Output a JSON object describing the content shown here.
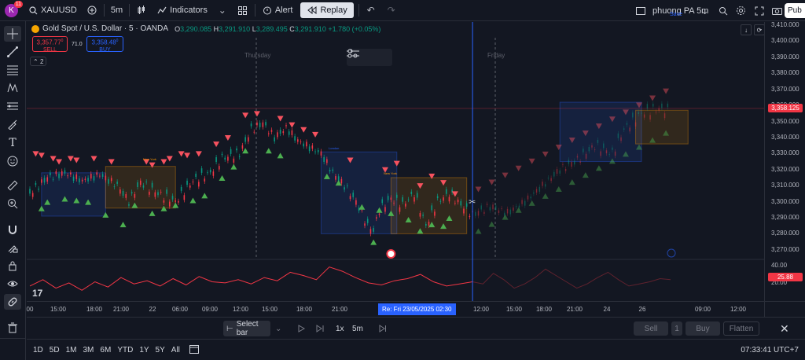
{
  "header": {
    "avatar_letter": "K",
    "notif_count": "11",
    "symbol": "XAUUSD",
    "interval": "5m",
    "indicators_label": "Indicators",
    "alert_label": "Alert",
    "replay_label": "Replay",
    "layout_name": "phuong PA 5m",
    "save_label": "Save",
    "publish_label": "Pub"
  },
  "legend": {
    "name": "Gold Spot / U.S. Dollar · 5 · OANDA",
    "o_label": "O",
    "o": "3,290.085",
    "h_label": "H",
    "h": "3,291.910",
    "l_label": "L",
    "l": "3,289.495",
    "c_label": "C",
    "c": "3,291.910",
    "chg": "+1.780 (+0.05%)",
    "sell_price": "3,357.77",
    "sell_sup": "0",
    "sell_label": "SELL",
    "spread": "71.0",
    "buy_price": "3,358.48",
    "buy_sup": "0",
    "buy_label": "BUY",
    "collapse_count": "2"
  },
  "chart_labels": {
    "day1": "Thursday",
    "day2": "Friday",
    "session_london": "London",
    "session_newyork": "New York"
  },
  "price_axis": {
    "ticks": [
      "3,410.000",
      "3,400.000",
      "3,390.000",
      "3,380.000",
      "3,370.000",
      "3,360.000",
      "3,350.000",
      "3,340.000",
      "3,330.000",
      "3,320.000",
      "3,310.000",
      "3,300.000",
      "3,290.000",
      "3,280.000",
      "3,270.000"
    ],
    "current_price": "3,358.125",
    "osc_ticks": [
      "40.00",
      "20.00"
    ],
    "osc_value": "25.88"
  },
  "time_axis": {
    "ticks": [
      "00",
      "15:00",
      "18:00",
      "21:00",
      "22",
      "06:00",
      "09:00",
      "12:00",
      "15:00",
      "18:00",
      "21:00",
      "09:00",
      "12:00",
      "15:00",
      "18:00",
      "21:00",
      "24",
      "26",
      "09:00",
      "12:00"
    ],
    "cursor_label": "Re: Fri 23/05/2025   02:30"
  },
  "replay_bar": {
    "select_bar": "Select bar",
    "speed": "1x",
    "interval": "5m",
    "sell": "Sell",
    "qty": "1",
    "buy": "Buy",
    "flatten": "Flatten"
  },
  "bottom_bar": {
    "ranges": [
      "1D",
      "5D",
      "1M",
      "3M",
      "6M",
      "YTD",
      "1Y",
      "5Y",
      "All"
    ],
    "clock": "07:33:41 UTC+7"
  },
  "colors": {
    "background": "#131722",
    "sell_red": "#f23645",
    "buy_blue": "#2962ff",
    "up_green": "#089981",
    "triangle_red": "#f7525f",
    "triangle_green": "#4caf50"
  },
  "chart_data": {
    "type": "line",
    "symbol": "XAUUSD",
    "interval": "5m",
    "ylim": [
      3265,
      3412
    ],
    "price_series": [
      {
        "t": 0,
        "p": 3305
      },
      {
        "t": 3,
        "p": 3315
      },
      {
        "t": 6,
        "p": 3318
      },
      {
        "t": 9,
        "p": 3313
      },
      {
        "t": 12,
        "p": 3317
      },
      {
        "t": 15,
        "p": 3310
      },
      {
        "t": 17,
        "p": 3300
      },
      {
        "t": 19,
        "p": 3312
      },
      {
        "t": 22,
        "p": 3305
      },
      {
        "t": 25,
        "p": 3300
      },
      {
        "t": 28,
        "p": 3313
      },
      {
        "t": 31,
        "p": 3318
      },
      {
        "t": 33,
        "p": 3327
      },
      {
        "t": 36,
        "p": 3330
      },
      {
        "t": 38,
        "p": 3345
      },
      {
        "t": 40,
        "p": 3349
      },
      {
        "t": 42,
        "p": 3340
      },
      {
        "t": 44,
        "p": 3346
      },
      {
        "t": 46,
        "p": 3338
      },
      {
        "t": 48,
        "p": 3334
      },
      {
        "t": 50,
        "p": 3330
      },
      {
        "t": 52,
        "p": 3318
      },
      {
        "t": 54,
        "p": 3310
      },
      {
        "t": 56,
        "p": 3300
      },
      {
        "t": 58,
        "p": 3285
      },
      {
        "t": 59,
        "p": 3282
      },
      {
        "t": 60,
        "p": 3295
      },
      {
        "t": 62,
        "p": 3302
      },
      {
        "t": 64,
        "p": 3298
      },
      {
        "t": 66,
        "p": 3305
      },
      {
        "t": 68,
        "p": 3285
      },
      {
        "t": 70,
        "p": 3300
      },
      {
        "t": 72,
        "p": 3305
      },
      {
        "t": 74,
        "p": 3298
      },
      {
        "t": 76,
        "p": 3292
      }
    ],
    "ghost_series": [
      {
        "t": 76,
        "p": 3292
      },
      {
        "t": 79,
        "p": 3297
      },
      {
        "t": 82,
        "p": 3293
      },
      {
        "t": 85,
        "p": 3300
      },
      {
        "t": 88,
        "p": 3310
      },
      {
        "t": 91,
        "p": 3320
      },
      {
        "t": 94,
        "p": 3326
      },
      {
        "t": 97,
        "p": 3335
      },
      {
        "t": 100,
        "p": 3330
      },
      {
        "t": 102,
        "p": 3345
      },
      {
        "t": 105,
        "p": 3355
      },
      {
        "t": 108,
        "p": 3358
      },
      {
        "t": 110,
        "p": 3356
      }
    ],
    "sell_arrows": [
      {
        "t": 1,
        "p": 3330
      },
      {
        "t": 2,
        "p": 3329
      },
      {
        "t": 4,
        "p": 3327
      },
      {
        "t": 5,
        "p": 3325
      },
      {
        "t": 7,
        "p": 3327
      },
      {
        "t": 8,
        "p": 3326
      },
      {
        "t": 11,
        "p": 3327
      },
      {
        "t": 14,
        "p": 3325
      },
      {
        "t": 20,
        "p": 3325
      },
      {
        "t": 21,
        "p": 3323
      },
      {
        "t": 23,
        "p": 3325
      },
      {
        "t": 24,
        "p": 3327
      },
      {
        "t": 26,
        "p": 3330
      },
      {
        "t": 27,
        "p": 3329
      },
      {
        "t": 29,
        "p": 3330
      },
      {
        "t": 32,
        "p": 3336
      },
      {
        "t": 34,
        "p": 3340
      },
      {
        "t": 37,
        "p": 3354
      },
      {
        "t": 39,
        "p": 3355
      },
      {
        "t": 43,
        "p": 3352
      },
      {
        "t": 45,
        "p": 3348
      },
      {
        "t": 47,
        "p": 3345
      },
      {
        "t": 49,
        "p": 3342
      },
      {
        "t": 55,
        "p": 3326
      },
      {
        "t": 61,
        "p": 3320
      },
      {
        "t": 63,
        "p": 3324
      },
      {
        "t": 67,
        "p": 3310
      },
      {
        "t": 69,
        "p": 3316
      },
      {
        "t": 71,
        "p": 3312
      },
      {
        "t": 73,
        "p": 3305
      }
    ],
    "buy_arrows": [
      {
        "t": 2,
        "p": 3296
      },
      {
        "t": 3,
        "p": 3300
      },
      {
        "t": 6,
        "p": 3302
      },
      {
        "t": 8,
        "p": 3301
      },
      {
        "t": 10,
        "p": 3300
      },
      {
        "t": 13,
        "p": 3292
      },
      {
        "t": 16,
        "p": 3286
      },
      {
        "t": 18,
        "p": 3298
      },
      {
        "t": 21,
        "p": 3293
      },
      {
        "t": 23,
        "p": 3296
      },
      {
        "t": 25,
        "p": 3298
      },
      {
        "t": 28,
        "p": 3301
      },
      {
        "t": 30,
        "p": 3304
      },
      {
        "t": 33,
        "p": 3315
      },
      {
        "t": 35,
        "p": 3322
      },
      {
        "t": 37,
        "p": 3332
      },
      {
        "t": 41,
        "p": 3332
      },
      {
        "t": 43,
        "p": 3329
      },
      {
        "t": 51,
        "p": 3316
      },
      {
        "t": 53,
        "p": 3312
      },
      {
        "t": 57,
        "p": 3297
      },
      {
        "t": 59,
        "p": 3275
      },
      {
        "t": 60,
        "p": 3295
      },
      {
        "t": 62,
        "p": 3293
      },
      {
        "t": 65,
        "p": 3289
      },
      {
        "t": 67,
        "p": 3282
      },
      {
        "t": 69,
        "p": 3286
      },
      {
        "t": 71,
        "p": 3285
      },
      {
        "t": 72,
        "p": 3290
      }
    ],
    "oscillator": {
      "ylim": [
        10,
        45
      ],
      "values": [
        22,
        28,
        20,
        25,
        18,
        26,
        21,
        30,
        24,
        27,
        22,
        29,
        23,
        31,
        26,
        25,
        28,
        24,
        30,
        27,
        35,
        32,
        28,
        40,
        36,
        30,
        25,
        23,
        27,
        29,
        33,
        26,
        22,
        24,
        26
      ],
      "ghost_values": [
        26,
        24,
        34,
        28,
        20,
        24,
        30,
        38,
        32,
        26,
        20,
        24,
        30,
        35,
        28,
        22,
        24,
        26,
        29,
        28
      ]
    }
  }
}
